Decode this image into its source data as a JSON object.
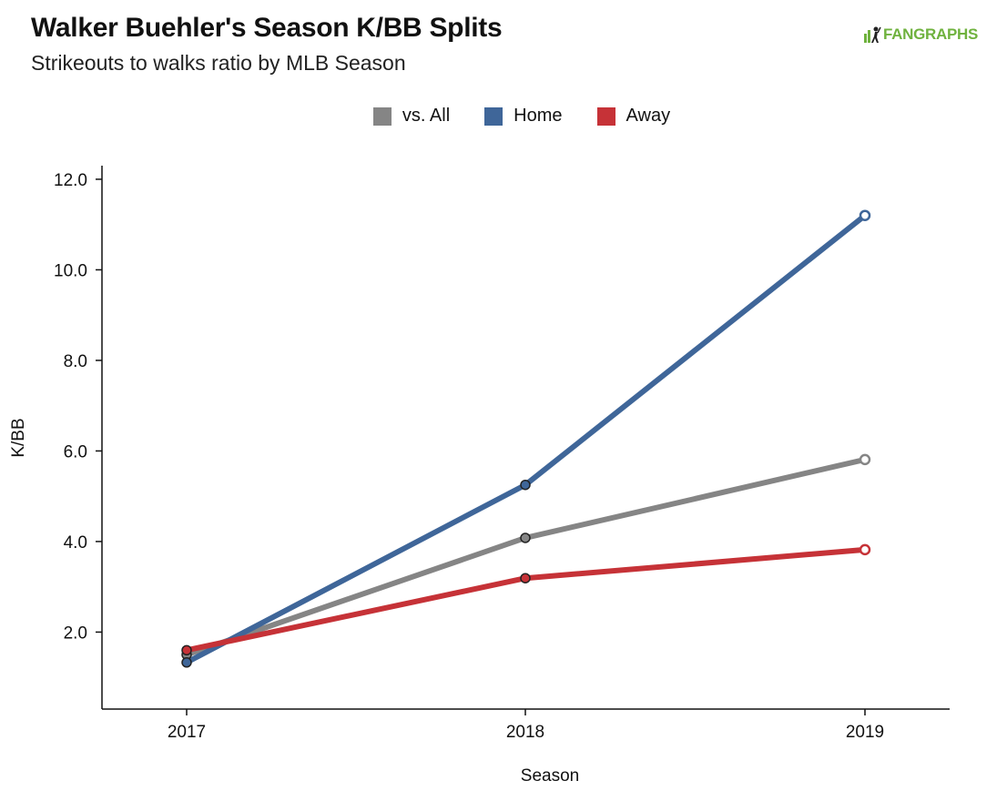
{
  "header": {
    "title": "Walker Buehler's Season K/BB Splits",
    "subtitle": "Strikeouts to walks ratio by MLB Season",
    "logo_text": "FANGRAPHS"
  },
  "colors": {
    "vs_all": "#858585",
    "home": "#3f6699",
    "away": "#c63237",
    "logo": "#6fb23e"
  },
  "chart_data": {
    "type": "line",
    "xlabel": "Season",
    "ylabel": "K/BB",
    "categories": [
      "2017",
      "2018",
      "2019"
    ],
    "ylim": [
      0.3,
      12.3
    ],
    "yticks": [
      "2.0",
      "4.0",
      "6.0",
      "8.0",
      "10.0",
      "12.0"
    ],
    "grid": false,
    "legend": "top-center",
    "series": [
      {
        "name": "vs. All",
        "key": "vs_all",
        "values": [
          1.5,
          4.08,
          5.81
        ]
      },
      {
        "name": "Home",
        "key": "home",
        "values": [
          1.33,
          5.25,
          11.2
        ]
      },
      {
        "name": "Away",
        "key": "away",
        "values": [
          1.6,
          3.19,
          3.82
        ]
      }
    ]
  }
}
